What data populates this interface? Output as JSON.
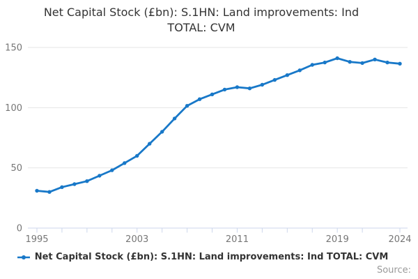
{
  "title": {
    "line1": "Net Capital Stock (£bn): S.1HN: Land improvements: Ind",
    "line2": "TOTAL: CVM",
    "full": "Net Capital Stock (£bn): S.1HN: Land improvements: Ind TOTAL: CVM"
  },
  "legend": {
    "label": "Net Capital Stock (£bn): S.1HN: Land improvements: Ind TOTAL: CVM"
  },
  "source": {
    "label": "Source:"
  },
  "colors": {
    "line": "#1878c8",
    "grid": "#e6e6e6",
    "axis": "#ccd6eb",
    "tick_label": "#767676",
    "title_text": "#333333",
    "source_text": "#999999"
  },
  "chart_data": {
    "type": "line",
    "title": "Net Capital Stock (£bn): S.1HN: Land improvements: Ind TOTAL: CVM",
    "x": [
      1995,
      1996,
      1997,
      1998,
      1999,
      2000,
      2001,
      2002,
      2003,
      2004,
      2005,
      2006,
      2007,
      2008,
      2009,
      2010,
      2011,
      2012,
      2013,
      2014,
      2015,
      2016,
      2017,
      2018,
      2019,
      2020,
      2021,
      2022,
      2023,
      2024
    ],
    "series": [
      {
        "name": "Net Capital Stock (£bn): S.1HN: Land improvements: Ind TOTAL: CVM",
        "values": [
          31,
          30,
          34,
          36.5,
          39,
          43.5,
          48,
          54,
          60,
          70,
          80,
          91,
          101.5,
          107,
          111,
          115,
          117,
          116,
          119,
          123,
          127,
          131,
          135.5,
          137.5,
          141,
          138,
          137,
          140,
          137.5,
          136.5
        ]
      }
    ],
    "xlabel": "",
    "ylabel": "",
    "xlim": [
      1995,
      2024
    ],
    "ylim": [
      0,
      150
    ],
    "yticks": [
      0,
      50,
      100,
      150
    ],
    "xtick_marks": [
      1995,
      1997,
      1999,
      2001,
      2003,
      2005,
      2007,
      2009,
      2011,
      2013,
      2015,
      2017,
      2019,
      2021,
      2024
    ],
    "xtick_labels": [
      1995,
      2003,
      2011,
      2019,
      2024
    ],
    "grid": "horizontal-only",
    "legend_position": "bottom",
    "marker": "circle"
  }
}
